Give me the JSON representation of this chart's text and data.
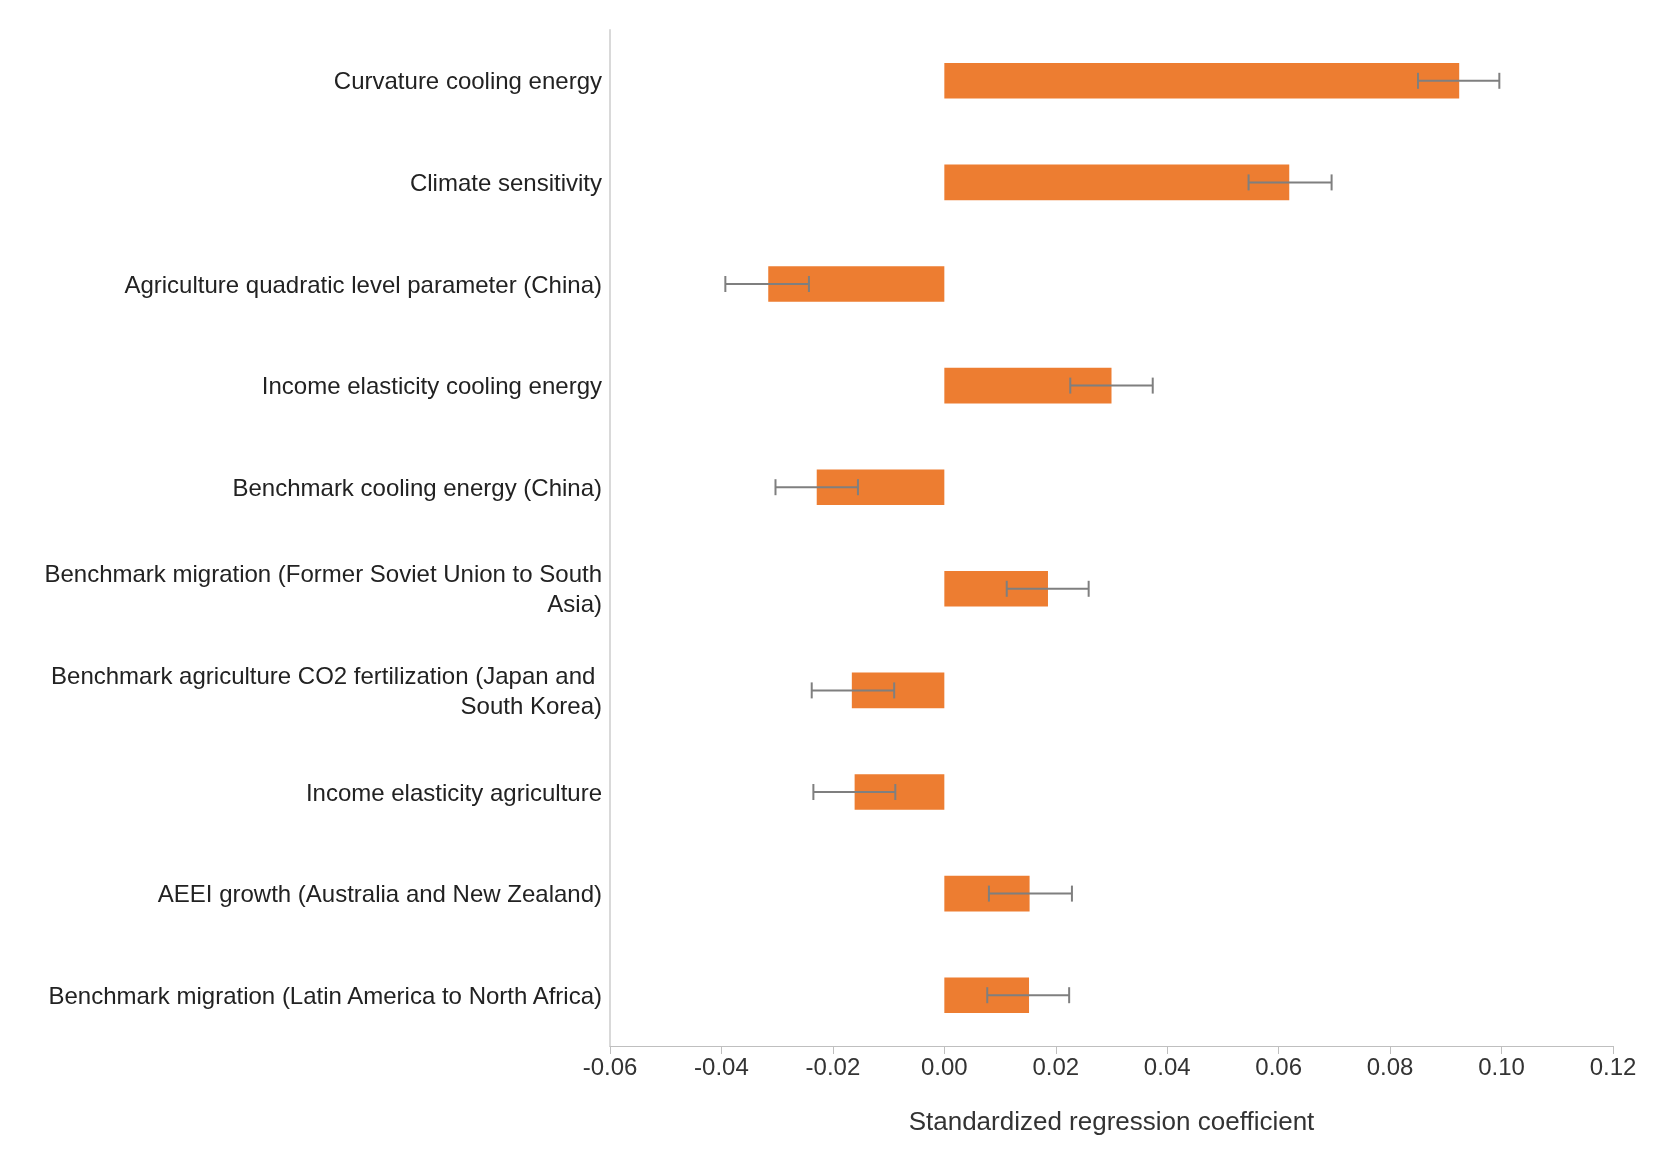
{
  "chart_data": {
    "type": "bar",
    "orientation": "horizontal",
    "xlabel": "Standardized regression coefficient",
    "categories": [
      "Curvature cooling energy",
      "Climate sensitivity",
      "Agriculture quadratic level parameter (China)",
      "Income elasticity cooling energy",
      "Benchmark cooling energy (China)",
      "Benchmark migration (Former Soviet Union to South Asia)",
      "Benchmark agriculture CO2 fertilization (Japan and South Korea)",
      "Income elasticity agriculture",
      "AEEI growth (Australia and New Zealand)",
      "Benchmark migration (Latin America to North Africa)"
    ],
    "values": [
      0.0924,
      0.0619,
      -0.0316,
      0.03,
      -0.0229,
      0.0186,
      -0.0166,
      -0.0161,
      0.0153,
      0.0152
    ],
    "errors": [
      [
        0.085,
        0.0996
      ],
      [
        0.0546,
        0.0695
      ],
      [
        -0.0393,
        -0.0243
      ],
      [
        0.0226,
        0.0374
      ],
      [
        -0.0303,
        -0.0155
      ],
      [
        0.0112,
        0.0259
      ],
      [
        -0.0238,
        -0.009
      ],
      [
        -0.0235,
        -0.0088
      ],
      [
        0.008,
        0.0229
      ],
      [
        0.0077,
        0.0224
      ]
    ],
    "color": "#ed7d31",
    "xlim": [
      -0.06,
      0.12
    ],
    "xticks": [
      {
        "value": -0.06,
        "label": "-0.06"
      },
      {
        "value": -0.04,
        "label": "-0.04"
      },
      {
        "value": -0.02,
        "label": "-0.02"
      },
      {
        "value": 0,
        "label": "0.00"
      },
      {
        "value": 0.02,
        "label": "0.02"
      },
      {
        "value": 0.04,
        "label": "0.04"
      },
      {
        "value": 0.06,
        "label": "0.06"
      },
      {
        "value": 0.08,
        "label": "0.08"
      },
      {
        "value": 0.1,
        "label": "0.10"
      },
      {
        "value": 0.12,
        "label": "0.12"
      }
    ],
    "grid": false
  }
}
